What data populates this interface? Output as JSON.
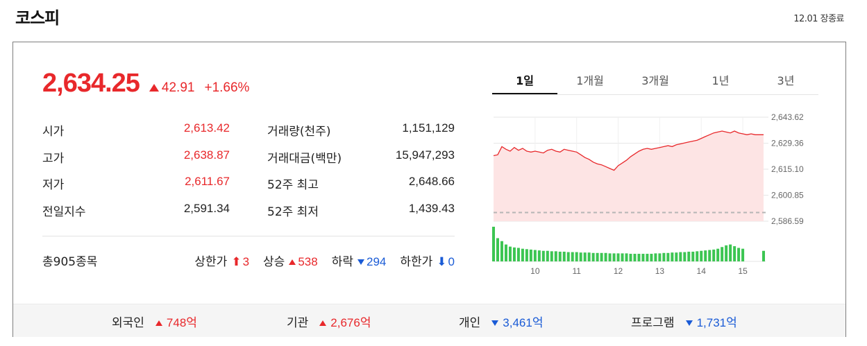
{
  "header": {
    "title": "코스피",
    "status": "12.01 장종료"
  },
  "quote": {
    "price": "2,634.25",
    "change": "42.91",
    "change_pct": "+1.66%",
    "direction": "up"
  },
  "stats": {
    "rows": [
      {
        "label1": "시가",
        "value1": "2,613.42",
        "color1": "red",
        "label2": "거래량(천주)",
        "value2": "1,151,129"
      },
      {
        "label1": "고가",
        "value1": "2,638.87",
        "color1": "red",
        "label2": "거래대금(백만)",
        "value2": "15,947,293"
      },
      {
        "label1": "저가",
        "value1": "2,611.67",
        "color1": "red",
        "label2": "52주 최고",
        "value2": "2,648.66"
      },
      {
        "label1": "전일지수",
        "value1": "2,591.34",
        "color1": "black",
        "label2": "52주 최저",
        "value2": "1,439.43"
      }
    ]
  },
  "breadth": {
    "total": "총905종목",
    "upper_limit_label": "상한가",
    "upper_limit": "3",
    "advance_label": "상승",
    "advance": "538",
    "decline_label": "하락",
    "decline": "294",
    "lower_limit_label": "하한가",
    "lower_limit": "0"
  },
  "tabs": [
    "1일",
    "1개월",
    "3개월",
    "1년",
    "3년"
  ],
  "active_tab": 0,
  "investors": [
    {
      "label": "외국인",
      "value": "748",
      "unit": "억",
      "direction": "up"
    },
    {
      "label": "기관",
      "value": "2,676",
      "unit": "억",
      "direction": "up"
    },
    {
      "label": "개인",
      "value": "3,461",
      "unit": "억",
      "direction": "down"
    },
    {
      "label": "프로그램",
      "value": "1,731",
      "unit": "억",
      "direction": "down"
    }
  ],
  "colors": {
    "up": "#e8282b",
    "down": "#1a5bd6",
    "area_fill": "#fde4e4",
    "volume": "#3cc552"
  },
  "chart_data": {
    "type": "area",
    "x_ticks": [
      "10",
      "11",
      "12",
      "13",
      "14",
      "15"
    ],
    "y_ticks": [
      "2,643.62",
      "2,629.36",
      "2,615.10",
      "2,600.85",
      "2,586.59"
    ],
    "ylim": [
      2586.59,
      2643.62
    ],
    "baseline": 2591.34,
    "x": [
      9.0,
      9.1,
      9.2,
      9.3,
      9.4,
      9.5,
      9.6,
      9.7,
      9.8,
      9.9,
      10.0,
      10.1,
      10.2,
      10.3,
      10.4,
      10.5,
      10.6,
      10.7,
      10.8,
      10.9,
      11.0,
      11.1,
      11.2,
      11.3,
      11.4,
      11.5,
      11.6,
      11.7,
      11.8,
      11.9,
      12.0,
      12.1,
      12.2,
      12.3,
      12.4,
      12.5,
      12.6,
      12.7,
      12.8,
      12.9,
      13.0,
      13.1,
      13.2,
      13.3,
      13.4,
      13.5,
      13.6,
      13.7,
      13.8,
      13.9,
      14.0,
      14.1,
      14.2,
      14.3,
      14.4,
      14.5,
      14.6,
      14.7,
      14.8,
      14.9,
      15.0,
      15.1,
      15.2,
      15.3,
      15.5
    ],
    "y": [
      2622.5,
      2623.0,
      2627.5,
      2626.0,
      2625.0,
      2627.0,
      2625.5,
      2626.5,
      2625.0,
      2624.5,
      2625.0,
      2624.5,
      2624.0,
      2625.5,
      2626.0,
      2625.0,
      2624.5,
      2626.0,
      2625.5,
      2625.0,
      2624.5,
      2623.0,
      2621.5,
      2620.5,
      2619.0,
      2618.0,
      2617.5,
      2616.5,
      2615.5,
      2614.5,
      2617.0,
      2618.5,
      2620.0,
      2622.0,
      2623.5,
      2625.0,
      2626.0,
      2626.5,
      2626.0,
      2626.5,
      2627.0,
      2627.5,
      2628.0,
      2627.5,
      2628.5,
      2629.0,
      2629.5,
      2630.0,
      2630.5,
      2631.0,
      2632.0,
      2633.0,
      2634.0,
      2635.0,
      2635.5,
      2636.0,
      2635.5,
      2635.0,
      2636.0,
      2635.0,
      2634.5,
      2634.0,
      2634.5,
      2634.0,
      2634.0
    ],
    "volume": [
      82,
      55,
      48,
      40,
      35,
      33,
      32,
      30,
      29,
      28,
      27,
      26,
      25,
      25,
      24,
      24,
      23,
      23,
      22,
      22,
      22,
      21,
      21,
      21,
      20,
      20,
      20,
      20,
      19,
      19,
      19,
      19,
      19,
      18,
      18,
      18,
      18,
      18,
      18,
      19,
      19,
      20,
      20,
      21,
      21,
      22,
      22,
      23,
      23,
      24,
      25,
      26,
      27,
      28,
      30,
      34,
      38,
      40,
      36,
      32,
      30,
      0,
      0,
      0,
      25
    ]
  }
}
